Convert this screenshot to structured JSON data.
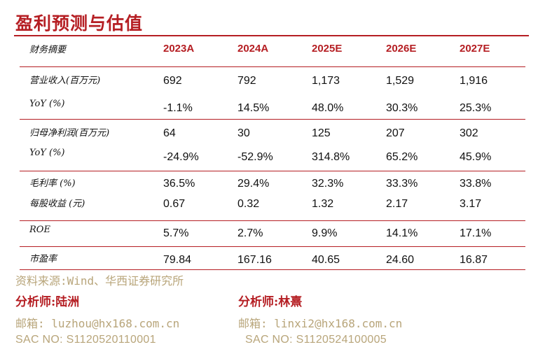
{
  "title": "盈利预测与估值",
  "table": {
    "header_label": "财务摘要",
    "years": [
      "2023A",
      "2024A",
      "2025E",
      "2026E",
      "2027E"
    ],
    "rows": [
      {
        "label": "营业收入(百万元)",
        "values": [
          "692",
          "792",
          "1,173",
          "1,529",
          "1,916"
        ]
      },
      {
        "label": "YoY (%)",
        "values": [
          "-1.1%",
          "14.5%",
          "48.0%",
          "30.3%",
          "25.3%"
        ]
      },
      {
        "label": "归母净利润(百万元)",
        "values": [
          "64",
          "30",
          "125",
          "207",
          "302"
        ]
      },
      {
        "label": "YoY (%)",
        "values": [
          "-24.9%",
          "-52.9%",
          "314.8%",
          "65.2%",
          "45.9%"
        ]
      },
      {
        "label": "毛利率 (%)",
        "values": [
          "36.5%",
          "29.4%",
          "32.3%",
          "33.3%",
          "33.8%"
        ]
      },
      {
        "label": "每股收益 (元)",
        "values": [
          "0.67",
          "0.32",
          "1.32",
          "2.17",
          "3.17"
        ]
      },
      {
        "label": "ROE",
        "values": [
          "5.7%",
          "2.7%",
          "9.9%",
          "14.1%",
          "17.1%"
        ]
      },
      {
        "label": "市盈率",
        "values": [
          "79.84",
          "167.16",
          "40.65",
          "24.60",
          "16.87"
        ]
      }
    ]
  },
  "source": "资料来源:Wind、华西证券研究所",
  "analysts": [
    {
      "title": "分析师:陆洲",
      "email": "邮箱: luzhou@hx168.com.cn",
      "sac": "SAC NO: S1120520110001"
    },
    {
      "title": "分析师:林熹",
      "email": "邮箱: linxi2@hx168.com.cn",
      "sac": "SAC NO: S1120524100005"
    }
  ],
  "colors": {
    "accent": "#b51e23",
    "muted": "#b8a57a"
  }
}
